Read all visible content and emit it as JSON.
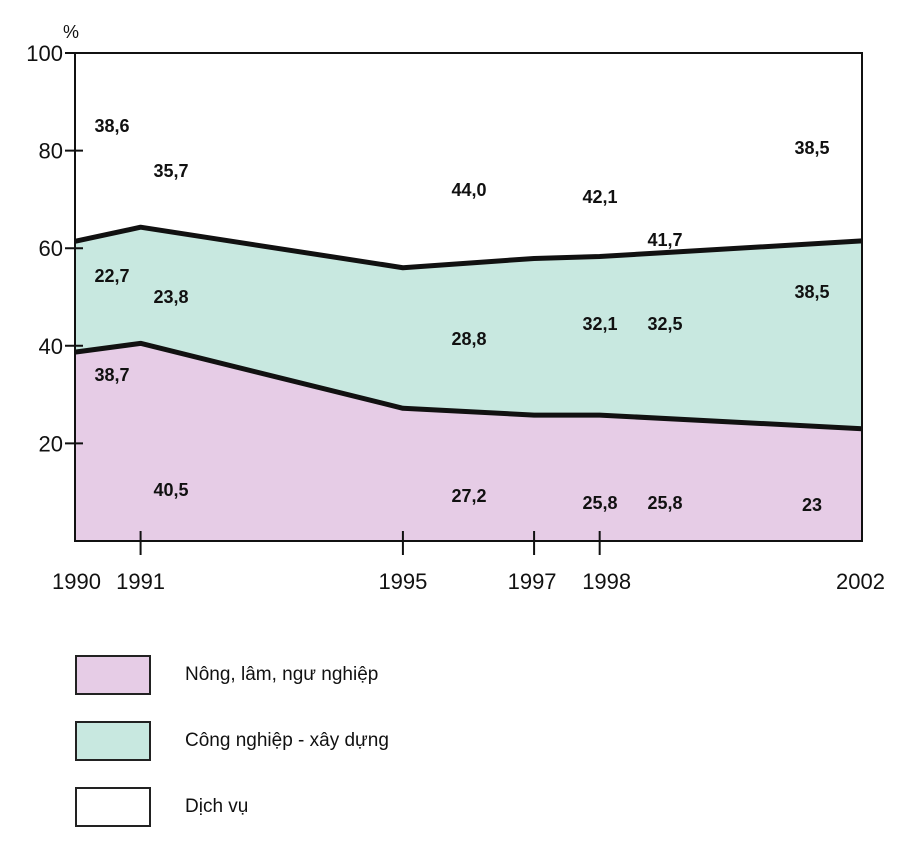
{
  "chart_data": {
    "type": "area",
    "stacked": true,
    "ylabel": "%",
    "ylim": [
      0,
      100
    ],
    "y_ticks": [
      20,
      40,
      60,
      80,
      100
    ],
    "x": [
      "1990",
      "1991",
      "1995",
      "1997",
      "1998",
      "2002"
    ],
    "series": [
      {
        "name": "Nông, lâm, ngư nghiệp",
        "color": "#e6cce6",
        "values": [
          38.7,
          40.5,
          27.2,
          25.8,
          25.8,
          23
        ],
        "labels": [
          "38,7",
          "40,5",
          "27,2",
          "25,8",
          "25,8",
          "23"
        ]
      },
      {
        "name": "Công nghiệp - xây dựng",
        "color": "#c8e8e0",
        "values": [
          22.7,
          23.8,
          28.8,
          32.1,
          32.5,
          38.5
        ],
        "labels": [
          "22,7",
          "23,8",
          "28,8",
          "32,1",
          "32,5",
          "38,5"
        ]
      },
      {
        "name": "Dịch vụ",
        "color": "#ffffff",
        "values": [
          38.6,
          35.7,
          44.0,
          42.1,
          41.7,
          38.5
        ],
        "labels": [
          "38,6",
          "35,7",
          "44,0",
          "42,1",
          "41,7",
          "38,5"
        ]
      }
    ],
    "grid": false,
    "legend_position": "bottom"
  }
}
